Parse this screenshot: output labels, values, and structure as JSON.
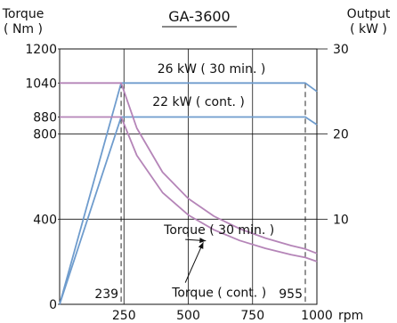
{
  "chart_data": {
    "type": "line",
    "title": "GA-3600",
    "ylabel_left": [
      "Torque",
      "( Nm )"
    ],
    "ylabel_right": [
      "Output",
      "( kW )"
    ],
    "xlabel_unit": "rpm",
    "xlim": [
      0,
      1000
    ],
    "ylim_left": [
      0,
      1200
    ],
    "ylim_right": [
      0,
      30
    ],
    "x_ticks": [
      "250",
      "500",
      "750",
      "1000"
    ],
    "x_tick_values": [
      250,
      500,
      750,
      1000
    ],
    "y_left_ticks": [
      "0",
      "400",
      "800",
      "880",
      "1040",
      "1200"
    ],
    "y_left_tick_values": [
      0,
      400,
      800,
      880,
      1040,
      1200
    ],
    "y_right_ticks": [
      "10",
      "20",
      "30"
    ],
    "y_right_tick_values": [
      10,
      20,
      30
    ],
    "grid": true,
    "markers": [
      {
        "label": "239",
        "x": 239
      },
      {
        "label": "955",
        "x": 955
      }
    ],
    "colors": {
      "output": "#6f9ccd",
      "torque": "#b585b8"
    },
    "series": [
      {
        "name": "26 kW ( 30 min. )",
        "axis": "right",
        "x": [
          0,
          239,
          955,
          1000
        ],
        "y": [
          0,
          26,
          26,
          25
        ]
      },
      {
        "name": "22 kW ( cont. )",
        "axis": "right",
        "x": [
          0,
          239,
          955,
          1000
        ],
        "y": [
          0,
          22,
          22,
          21.1
        ]
      },
      {
        "name": "Torque ( 30 min. )",
        "axis": "left",
        "x": [
          0,
          239,
          300,
          400,
          500,
          600,
          700,
          800,
          900,
          955,
          1000
        ],
        "y": [
          1040,
          1040,
          828,
          621,
          497,
          414,
          355,
          311,
          276,
          260,
          239
        ]
      },
      {
        "name": "Torque ( cont. )",
        "axis": "left",
        "x": [
          0,
          239,
          300,
          400,
          500,
          600,
          700,
          800,
          900,
          955,
          1000
        ],
        "y": [
          880,
          880,
          700,
          525,
          420,
          350,
          300,
          263,
          233,
          220,
          201
        ]
      }
    ],
    "annotations": [
      {
        "text": "26 kW ( 30 min. )",
        "x": 590,
        "y_right": 27.2
      },
      {
        "text": "22 kW ( cont. )",
        "x": 540,
        "y_right": 23.3
      },
      {
        "text": "Torque ( 30 min. )",
        "x": 620,
        "y_left": 330,
        "arrow_to_x": 790,
        "arrow_to_y": 290
      },
      {
        "text": "Torque ( cont. )",
        "x": 620,
        "y_left": 35,
        "arrow_to_x": 780,
        "arrow_to_y": 325
      }
    ]
  }
}
